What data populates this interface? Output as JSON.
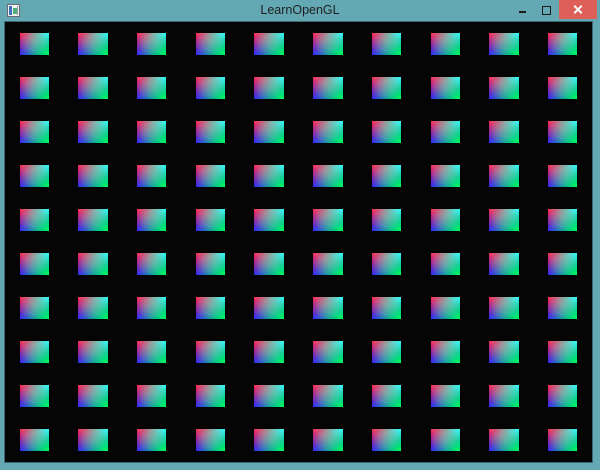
{
  "window": {
    "title": "LearnOpenGL",
    "titlebar_color": "#64a8b4",
    "border_color": "#64a8b4",
    "title_text_color": "#1f1f1f",
    "controls": {
      "minimize_label": "minimize",
      "maximize_label": "maximize",
      "close_label": "close",
      "close_background": "#dd5f57",
      "glyph_color": "#1b1b1b",
      "close_glyph_color": "#ffffff"
    }
  },
  "viewport": {
    "background": "#050505",
    "description": "OpenGL instanced quads demo render",
    "grid": {
      "rows": 10,
      "cols": 10,
      "cell_percent": 10,
      "offset_percent": 2.5,
      "quad_percent": 5,
      "corner_colors": {
        "top_left": "#ff0000",
        "top_right": "#00ffff",
        "bottom_left": "#0000ff",
        "bottom_right": "#00ff00"
      }
    }
  }
}
